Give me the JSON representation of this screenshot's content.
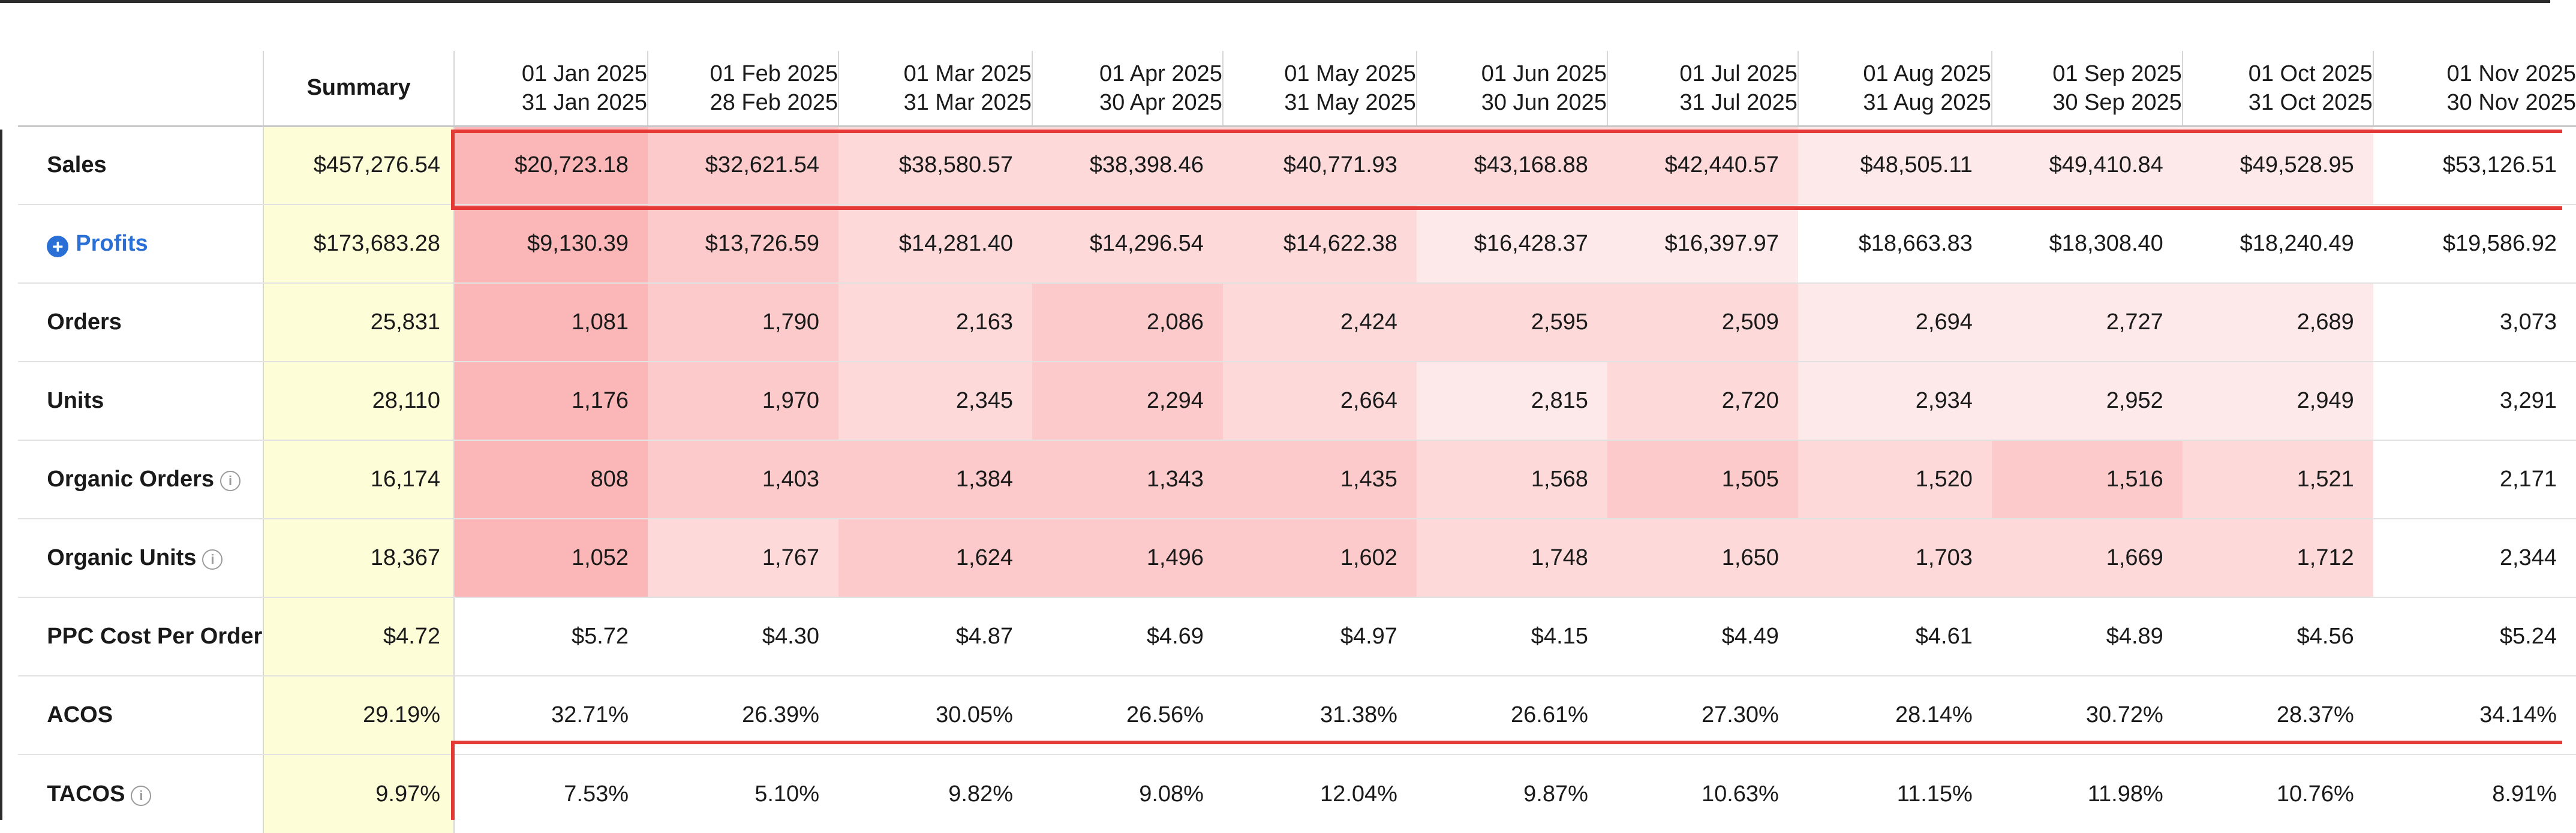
{
  "colors": {
    "summary_bg": "#fdfdd8",
    "highlight_border": "#e53935",
    "link_blue": "#2a6fd6",
    "heat_levels": [
      "#ffffff",
      "#fde9e9",
      "#fdd9d9",
      "#fccaca",
      "#fbb7b7"
    ]
  },
  "header": {
    "summary_label": "Summary",
    "periods": [
      {
        "start": "01 Jan 2025",
        "end": "31 Jan 2025"
      },
      {
        "start": "01 Feb 2025",
        "end": "28 Feb 2025"
      },
      {
        "start": "01 Mar 2025",
        "end": "31 Mar 2025"
      },
      {
        "start": "01 Apr 2025",
        "end": "30 Apr 2025"
      },
      {
        "start": "01 May 2025",
        "end": "31 May 2025"
      },
      {
        "start": "01 Jun 2025",
        "end": "30 Jun 2025"
      },
      {
        "start": "01 Jul 2025",
        "end": "31 Jul 2025"
      },
      {
        "start": "01 Aug 2025",
        "end": "31 Aug 2025"
      },
      {
        "start": "01 Sep 2025",
        "end": "30 Sep 2025"
      },
      {
        "start": "01 Oct 2025",
        "end": "31 Oct 2025"
      },
      {
        "start": "01 Nov 2025",
        "end": "30 Nov 2025"
      }
    ]
  },
  "rows": [
    {
      "label": "Sales",
      "icon_left": null,
      "info_icon": false,
      "link": false,
      "summary": "$457,276.54",
      "values": [
        "$20,723.18",
        "$32,621.54",
        "$38,580.57",
        "$38,398.46",
        "$40,771.93",
        "$43,168.88",
        "$42,440.57",
        "$48,505.11",
        "$49,410.84",
        "$49,528.95",
        "$53,126.51"
      ],
      "heat": [
        4,
        3,
        2,
        2,
        2,
        2,
        2,
        1,
        1,
        1,
        0
      ]
    },
    {
      "label": "Profits",
      "icon_left": "plus-circle-icon",
      "info_icon": false,
      "link": true,
      "summary": "$173,683.28",
      "values": [
        "$9,130.39",
        "$13,726.59",
        "$14,281.40",
        "$14,296.54",
        "$14,622.38",
        "$16,428.37",
        "$16,397.97",
        "$18,663.83",
        "$18,308.40",
        "$18,240.49",
        "$19,586.92"
      ],
      "heat": [
        4,
        3,
        2,
        2,
        2,
        1,
        1,
        0,
        0,
        0,
        0
      ]
    },
    {
      "label": "Orders",
      "icon_left": null,
      "info_icon": false,
      "link": false,
      "summary": "25,831",
      "values": [
        "1,081",
        "1,790",
        "2,163",
        "2,086",
        "2,424",
        "2,595",
        "2,509",
        "2,694",
        "2,727",
        "2,689",
        "3,073"
      ],
      "heat": [
        4,
        3,
        2,
        3,
        2,
        2,
        2,
        1,
        1,
        1,
        0
      ]
    },
    {
      "label": "Units",
      "icon_left": null,
      "info_icon": false,
      "link": false,
      "summary": "28,110",
      "values": [
        "1,176",
        "1,970",
        "2,345",
        "2,294",
        "2,664",
        "2,815",
        "2,720",
        "2,934",
        "2,952",
        "2,949",
        "3,291"
      ],
      "heat": [
        4,
        3,
        2,
        3,
        2,
        1,
        2,
        1,
        1,
        1,
        0
      ]
    },
    {
      "label": "Organic Orders",
      "icon_left": null,
      "info_icon": true,
      "link": false,
      "summary": "16,174",
      "values": [
        "808",
        "1,403",
        "1,384",
        "1,343",
        "1,435",
        "1,568",
        "1,505",
        "1,520",
        "1,516",
        "1,521",
        "2,171"
      ],
      "heat": [
        4,
        3,
        3,
        3,
        3,
        2,
        3,
        2,
        3,
        2,
        0
      ]
    },
    {
      "label": "Organic Units",
      "icon_left": null,
      "info_icon": true,
      "link": false,
      "summary": "18,367",
      "values": [
        "1,052",
        "1,767",
        "1,624",
        "1,496",
        "1,602",
        "1,748",
        "1,650",
        "1,703",
        "1,669",
        "1,712",
        "2,344"
      ],
      "heat": [
        4,
        2,
        3,
        3,
        3,
        2,
        2,
        2,
        2,
        2,
        0
      ]
    },
    {
      "label": "PPC Cost Per Order",
      "icon_left": null,
      "info_icon": false,
      "link": false,
      "summary": "$4.72",
      "values": [
        "$5.72",
        "$4.30",
        "$4.87",
        "$4.69",
        "$4.97",
        "$4.15",
        "$4.49",
        "$4.61",
        "$4.89",
        "$4.56",
        "$5.24"
      ],
      "heat": [
        0,
        0,
        0,
        0,
        0,
        0,
        0,
        0,
        0,
        0,
        0
      ]
    },
    {
      "label": "ACOS",
      "icon_left": null,
      "info_icon": false,
      "link": false,
      "summary": "29.19%",
      "values": [
        "32.71%",
        "26.39%",
        "30.05%",
        "26.56%",
        "31.38%",
        "26.61%",
        "27.30%",
        "28.14%",
        "30.72%",
        "28.37%",
        "34.14%"
      ],
      "heat": [
        0,
        0,
        0,
        0,
        0,
        0,
        0,
        0,
        0,
        0,
        0
      ]
    },
    {
      "label": "TACOS",
      "icon_left": null,
      "info_icon": true,
      "link": false,
      "summary": "9.97%",
      "values": [
        "7.53%",
        "5.10%",
        "9.82%",
        "9.08%",
        "12.04%",
        "9.87%",
        "10.63%",
        "11.15%",
        "11.98%",
        "10.76%",
        "8.91%"
      ],
      "heat": [
        0,
        0,
        0,
        0,
        0,
        0,
        0,
        0,
        0,
        0,
        0
      ]
    }
  ]
}
